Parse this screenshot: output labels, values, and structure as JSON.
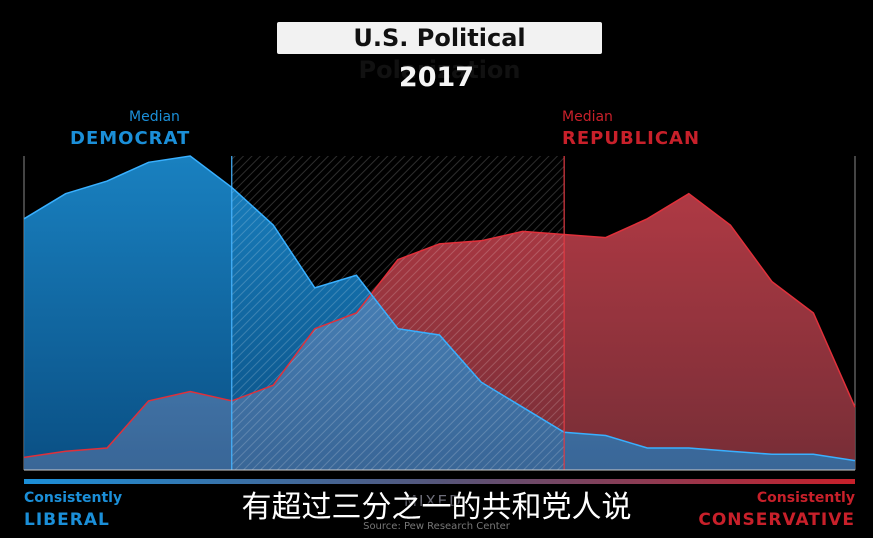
{
  "header": {
    "title": "U.S. Political Polarization",
    "year": "2017"
  },
  "annotations": {
    "dem_small": "Median",
    "dem_big": "DEMOCRAT",
    "rep_small": "Median",
    "rep_big": "REPUBLICAN",
    "left_small": "Consistently",
    "left_big": "LIBERAL",
    "right_small": "Consistently",
    "right_big": "CONSERVATIVE",
    "center": "MIXED",
    "source": "Source: Pew Research Center",
    "subtitle": "有超过三分之一的共和党人说"
  },
  "colors": {
    "democrat": "#1b8fd8",
    "republican": "#c8202a",
    "background": "#000000"
  },
  "chart_data": {
    "type": "area",
    "title": "U.S. Political Polarization",
    "subtitle": "2017",
    "x": [
      -10,
      -9,
      -8,
      -7,
      -6,
      -5,
      -4,
      -3,
      -2,
      -1,
      0,
      1,
      2,
      3,
      4,
      5,
      6,
      7,
      8,
      9,
      10
    ],
    "ylim": [
      0,
      100
    ],
    "series": [
      {
        "name": "DEMOCRAT",
        "values": [
          80,
          88,
          92,
          98,
          100,
          90,
          78,
          58,
          62,
          45,
          43,
          28,
          20,
          12,
          11,
          7,
          7,
          6,
          5,
          5,
          3
        ]
      },
      {
        "name": "REPUBLICAN",
        "values": [
          4,
          6,
          7,
          22,
          25,
          22,
          27,
          45,
          50,
          67,
          72,
          73,
          76,
          75,
          74,
          80,
          88,
          78,
          60,
          50,
          20
        ]
      }
    ],
    "medians": {
      "DEMOCRAT": -5,
      "REPUBLICAN": 3
    },
    "grid": false,
    "xlabel_left": "Consistently LIBERAL",
    "xlabel_right": "Consistently CONSERVATIVE",
    "xlabel_center": "MIXED"
  }
}
